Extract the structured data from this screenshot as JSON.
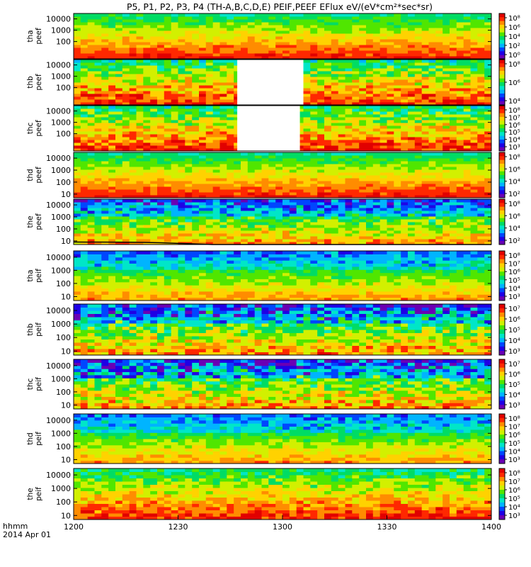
{
  "title": "P5, P1, P2, P3, P4 (TH-A,B,C,D,E) PEIF,PEEF EFlux eV/(eV*cm²*sec*sr)",
  "footer": {
    "hhmm": "hhmm",
    "date": "2014 Apr 01"
  },
  "chart_data": {
    "type": "heatmap",
    "colormap": [
      "#ffffff",
      "#6a00b4",
      "#1e00e6",
      "#0046ff",
      "#00b4ff",
      "#00e6c8",
      "#00dc64",
      "#50e600",
      "#d2f000",
      "#ffd200",
      "#ff8c00",
      "#ff2800",
      "#e10000"
    ],
    "x_axis": {
      "ticks": [
        "1200",
        "1230",
        "1300",
        "1330",
        "1400"
      ],
      "tick_values": [
        0,
        30,
        60,
        90,
        120
      ],
      "xlim": [
        0,
        120
      ],
      "unit": "minutes after 12:00"
    },
    "panels": [
      {
        "label": [
          "tha",
          "peef"
        ],
        "yticks": [
          "10000",
          "1000",
          "100"
        ],
        "ylim": [
          3,
          30000
        ],
        "cbar_ticks": [
          "10⁸",
          "10⁶",
          "10⁴",
          "10²",
          "10⁰"
        ],
        "cbar_range": [
          -1,
          9
        ],
        "base": 10,
        "noise": 0.6,
        "gap": null,
        "line": null
      },
      {
        "label": [
          "thb",
          "peef"
        ],
        "yticks": [
          "10000",
          "1000",
          "100"
        ],
        "ylim": [
          3,
          30000
        ],
        "cbar_ticks": [
          "10⁸",
          "10⁶",
          "10⁴"
        ],
        "cbar_range": [
          2.5,
          9
        ],
        "base": 6,
        "noise": 1.2,
        "gap": [
          47,
          66
        ],
        "line": null
      },
      {
        "label": [
          "thc",
          "peef"
        ],
        "yticks": [
          "10000",
          "1000",
          "100"
        ],
        "ylim": [
          3,
          30000
        ],
        "cbar_ticks": [
          "10⁸",
          "10⁷",
          "10⁶",
          "10⁵",
          "10⁴",
          "10³"
        ],
        "cbar_range": [
          2.5,
          8.5
        ],
        "base": 6,
        "noise": 1.2,
        "gap": [
          47,
          65
        ],
        "line": null
      },
      {
        "label": [
          "thd",
          "peef"
        ],
        "yticks": [
          "10000",
          "1000",
          "100",
          "10"
        ],
        "ylim": [
          5,
          30000
        ],
        "cbar_ticks": [
          "10⁸",
          "10⁶",
          "10⁴",
          "10²"
        ],
        "cbar_range": [
          1,
          9
        ],
        "base": 8,
        "noise": 0.5,
        "gap": null,
        "line": null
      },
      {
        "label": [
          "the",
          "peef"
        ],
        "yticks": [
          "10000",
          "1000",
          "100",
          "10"
        ],
        "ylim": [
          5,
          30000
        ],
        "cbar_ticks": [
          "10⁸",
          "10⁶",
          "10⁴",
          "10²"
        ],
        "cbar_range": [
          1,
          9
        ],
        "base": 5,
        "noise": 1.0,
        "gap": null,
        "line": [
          [
            0,
            3.5
          ],
          [
            15,
            3.3
          ],
          [
            20,
            3
          ],
          [
            25,
            2.5
          ],
          [
            40,
            0
          ],
          [
            120,
            0
          ]
        ]
      },
      {
        "label": [
          "tha",
          "peif"
        ],
        "yticks": [
          "10000",
          "1000",
          "100",
          "10"
        ],
        "ylim": [
          5,
          30000
        ],
        "cbar_ticks": [
          "10⁸",
          "10⁷",
          "10⁶",
          "10⁵",
          "10⁴",
          "10³"
        ],
        "cbar_range": [
          2.5,
          8.5
        ],
        "base": 5,
        "noise": 0.6,
        "gap": null,
        "line": null
      },
      {
        "label": [
          "thb",
          "peif"
        ],
        "yticks": [
          "10000",
          "1000",
          "100",
          "10"
        ],
        "ylim": [
          5,
          30000
        ],
        "cbar_ticks": [
          "10⁷",
          "10⁶",
          "10⁵",
          "10⁴",
          "10³"
        ],
        "cbar_range": [
          2.5,
          7.5
        ],
        "base": 4,
        "noise": 1.3,
        "gap": null,
        "line": null
      },
      {
        "label": [
          "thc",
          "peif"
        ],
        "yticks": [
          "10000",
          "1000",
          "100",
          "10"
        ],
        "ylim": [
          5,
          30000
        ],
        "cbar_ticks": [
          "10⁷",
          "10⁶",
          "10⁵",
          "10⁴",
          "10³"
        ],
        "cbar_range": [
          2.5,
          7.5
        ],
        "base": 4,
        "noise": 1.3,
        "gap": null,
        "line": null
      },
      {
        "label": [
          "thd",
          "peif"
        ],
        "yticks": [
          "10000",
          "1000",
          "100",
          "10"
        ],
        "ylim": [
          5,
          30000
        ],
        "cbar_ticks": [
          "10⁸",
          "10⁷",
          "10⁶",
          "10⁵",
          "10⁴",
          "10³"
        ],
        "cbar_range": [
          2.5,
          8.5
        ],
        "base": 5,
        "noise": 0.6,
        "gap": null,
        "line": null
      },
      {
        "label": [
          "the",
          "peif"
        ],
        "yticks": [
          "10000",
          "1000",
          "100",
          "10"
        ],
        "ylim": [
          5,
          30000
        ],
        "cbar_ticks": [
          "10⁸",
          "10⁷",
          "10⁶",
          "10⁵",
          "10⁴",
          "10³"
        ],
        "cbar_range": [
          2.5,
          8.5
        ],
        "base": 9,
        "noise": 0.9,
        "gap": null,
        "line": null
      }
    ]
  }
}
